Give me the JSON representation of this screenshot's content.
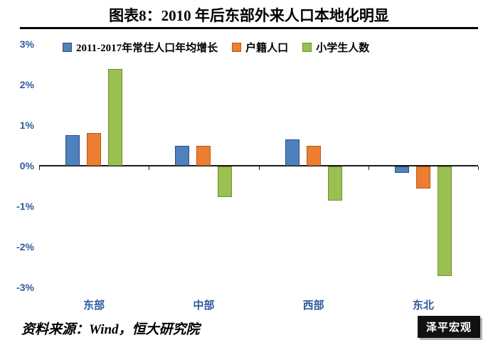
{
  "title": "图表8：2010 年后东部外来人口本地化明显",
  "source": "资料来源：Wind，恒大研究院",
  "watermark": "泽平宏观",
  "chart_data": {
    "type": "bar",
    "title": "图表8：2010 年后东部外来人口本地化明显",
    "categories": [
      "东部",
      "中部",
      "西部",
      "东北"
    ],
    "series": [
      {
        "name": "2011-2017年常住人口年均增长",
        "color": "#4F81BD",
        "border": "#2E4D7B",
        "values": [
          0.75,
          0.5,
          0.65,
          -0.15
        ]
      },
      {
        "name": "户籍人口",
        "color": "#ED7D31",
        "border": "#B55A19",
        "values": [
          0.8,
          0.5,
          0.5,
          -0.55
        ]
      },
      {
        "name": "小学生人数",
        "color": "#9BC052",
        "border": "#6E8F33",
        "values": [
          2.38,
          -0.75,
          -0.85,
          -2.7
        ]
      }
    ],
    "xlabel": "",
    "ylabel": "",
    "ylim": [
      -3,
      3
    ],
    "yticks": [
      "3%",
      "2%",
      "1%",
      "0%",
      "-1%",
      "-2%",
      "-3%"
    ],
    "ytick_values": [
      3,
      2,
      1,
      0,
      -1,
      -2,
      -3
    ],
    "grid": false,
    "legend_position": "top"
  }
}
